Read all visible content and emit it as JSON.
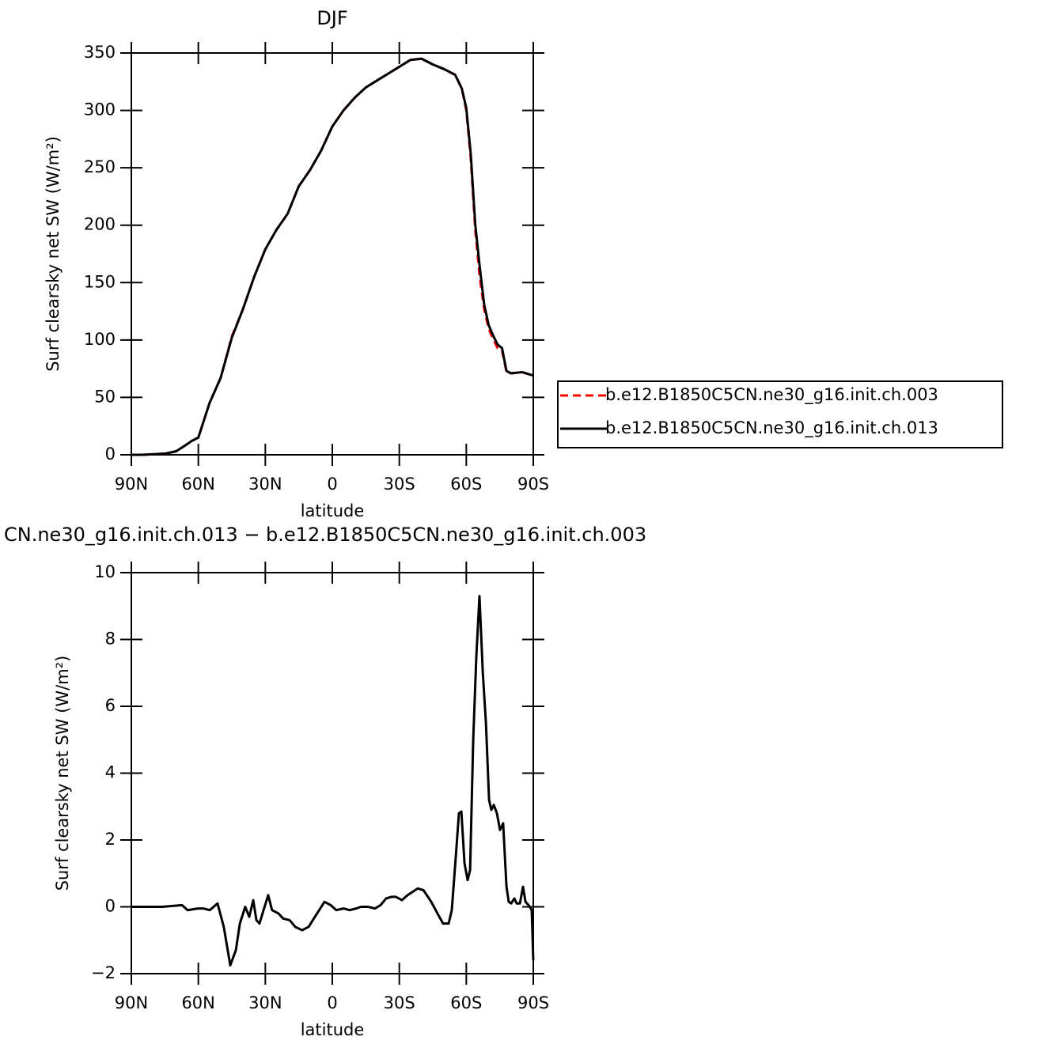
{
  "chart_data": [
    {
      "type": "line",
      "title": "DJF",
      "xlabel": "latitude",
      "ylabel": "Surf clearsky net SW (W/m²)",
      "x": [
        90,
        85,
        80,
        75,
        70,
        66,
        63,
        60,
        55,
        50,
        45,
        40,
        35,
        30,
        25,
        20,
        15,
        10,
        5,
        0,
        -5,
        -10,
        -15,
        -20,
        -25,
        -30,
        -35,
        -40,
        -45,
        -50,
        -55,
        -58,
        -60,
        -62,
        -64,
        -66,
        -68,
        -70,
        -72,
        -74,
        -76,
        -78,
        -80,
        -85,
        -90
      ],
      "series": [
        {
          "name": "b.e12.B1850C5CN.ne30_g16.init.ch.003",
          "color": "#ff0000",
          "line_style": "dashed",
          "values": [
            0,
            0,
            0.5,
            1,
            3,
            8,
            12,
            15,
            45,
            67,
            103,
            127,
            155,
            179,
            196,
            210,
            234,
            248,
            265,
            286,
            300,
            311,
            320,
            326,
            332,
            338,
            344,
            345,
            340,
            336,
            331,
            319,
            300,
            258,
            196,
            155,
            127,
            110,
            101,
            93,
            91,
            72,
            71,
            72,
            69
          ]
        },
        {
          "name": "b.e12.B1850C5CN.ne30_g16.init.ch.013",
          "color": "#000000",
          "line_style": "solid",
          "values": [
            0,
            0,
            0.5,
            1,
            3,
            8,
            12,
            15,
            45,
            67,
            102,
            127,
            155,
            179,
            196,
            210,
            234,
            248,
            265,
            286,
            300,
            311,
            320,
            326,
            332,
            338,
            344,
            345,
            340,
            336,
            331,
            319,
            302,
            262,
            201,
            164,
            131,
            113,
            104,
            96,
            93,
            73,
            71,
            72,
            69
          ]
        }
      ],
      "xlim": [
        90,
        -90
      ],
      "xticks": [
        {
          "value": 90,
          "label": "90N"
        },
        {
          "value": 60,
          "label": "60N"
        },
        {
          "value": 30,
          "label": "30N"
        },
        0,
        {
          "value": -30,
          "label": "30S"
        },
        {
          "value": -60,
          "label": "60S"
        },
        {
          "value": -90,
          "label": "90S"
        }
      ],
      "ylim": [
        0,
        350
      ],
      "yticks": [
        0,
        50,
        100,
        150,
        200,
        250,
        300,
        350
      ],
      "legend": "right"
    },
    {
      "type": "line",
      "title": "CN.ne30_g16.init.ch.013 − b.e12.B1850C5CN.ne30_g16.init.ch.003",
      "xlabel": "latitude",
      "ylabel": "Surf clearsky net SW (W/m²)",
      "x": [
        90,
        76.2,
        67.3,
        64.8,
        60.2,
        57.7,
        54.9,
        51.4,
        48.6,
        45.7,
        43.2,
        41.4,
        39.0,
        37.2,
        35.4,
        34.0,
        32.6,
        30.8,
        28.7,
        27.0,
        24.1,
        22.0,
        19.1,
        16.6,
        13.5,
        10.6,
        7.8,
        3.5,
        0.7,
        -1.8,
        -5.0,
        -7.8,
        -10.7,
        -12.8,
        -16.0,
        -19.1,
        -21.6,
        -24.1,
        -26.6,
        -28.4,
        -31.2,
        -33.7,
        -38.3,
        -40.8,
        -44.3,
        -47.1,
        -49.6,
        -52.1,
        -53.5,
        -55.3,
        -56.7,
        -57.8,
        -59.2,
        -60.6,
        -61.7,
        -63.1,
        -64.5,
        -65.9,
        -67.4,
        -68.8,
        -70.2,
        -71.2,
        -72.3,
        -73.7,
        -75.1,
        -76.5,
        -78.0,
        -79.0,
        -80.1,
        -81.5,
        -82.6,
        -84.0,
        -85.4,
        -86.5,
        -87.9,
        -89.3,
        -90
      ],
      "values": [
        0,
        0,
        0.05,
        -0.1,
        -0.05,
        -0.05,
        -0.1,
        0.1,
        -0.6,
        -1.75,
        -1.3,
        -0.5,
        0.0,
        -0.3,
        0.2,
        -0.4,
        -0.5,
        -0.1,
        0.35,
        -0.1,
        -0.2,
        -0.35,
        -0.4,
        -0.6,
        -0.7,
        -0.6,
        -0.3,
        0.15,
        0.05,
        -0.1,
        -0.05,
        -0.1,
        -0.05,
        0.0,
        0.0,
        -0.05,
        0.05,
        0.25,
        0.3,
        0.3,
        0.2,
        0.35,
        0.55,
        0.5,
        0.15,
        -0.2,
        -0.5,
        -0.5,
        -0.1,
        1.5,
        2.8,
        2.85,
        1.3,
        0.8,
        1.1,
        5.0,
        7.5,
        9.3,
        7.0,
        5.5,
        3.2,
        2.9,
        3.05,
        2.8,
        2.3,
        2.5,
        0.6,
        0.15,
        0.1,
        0.25,
        0.1,
        0.1,
        0.6,
        0.15,
        0.05,
        -0.1,
        -1.6
      ],
      "color": "#000000",
      "xlim": [
        90,
        -90
      ],
      "xticks": [
        {
          "value": 90,
          "label": "90N"
        },
        {
          "value": 60,
          "label": "60N"
        },
        {
          "value": 30,
          "label": "30N"
        },
        0,
        {
          "value": -30,
          "label": "30S"
        },
        {
          "value": -60,
          "label": "60S"
        },
        {
          "value": -90,
          "label": "90S"
        }
      ],
      "ylim": [
        -2,
        10
      ],
      "yticks": [
        {
          "value": -2,
          "label": "−2"
        },
        0,
        2,
        4,
        6,
        8,
        10
      ]
    }
  ]
}
